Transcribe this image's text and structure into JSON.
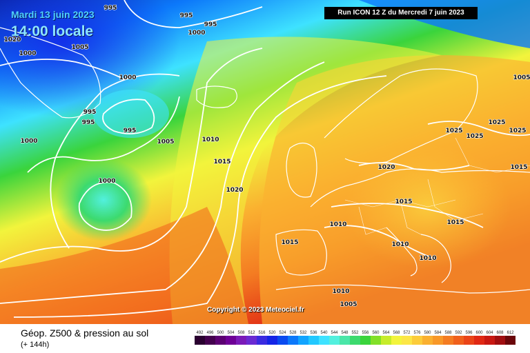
{
  "header": {
    "date": "Mardi 13 juin 2023",
    "time": "14:00 locale",
    "run": "Run ICON 12 Z du Mercredi 7 juin 2023"
  },
  "copyright": "Copyright © 2023 Meteociel.fr",
  "footer": {
    "title": "Géop. Z500 & pression au sol",
    "subtitle": "(+ 144h)"
  },
  "scale": [
    {
      "label": "492",
      "color": "#2a0030"
    },
    {
      "label": "496",
      "color": "#44004e"
    },
    {
      "label": "500",
      "color": "#5c0072"
    },
    {
      "label": "504",
      "color": "#6e0096"
    },
    {
      "label": "508",
      "color": "#7a1ab8"
    },
    {
      "label": "512",
      "color": "#6a2ad2"
    },
    {
      "label": "516",
      "color": "#3a2ae0"
    },
    {
      "label": "520",
      "color": "#1424e6"
    },
    {
      "label": "524",
      "color": "#0a4af0"
    },
    {
      "label": "528",
      "color": "#0c78fa"
    },
    {
      "label": "532",
      "color": "#12a4ff"
    },
    {
      "label": "536",
      "color": "#22c8ff"
    },
    {
      "label": "540",
      "color": "#3ee2ff"
    },
    {
      "label": "544",
      "color": "#52f0de"
    },
    {
      "label": "548",
      "color": "#4ae6a8"
    },
    {
      "label": "552",
      "color": "#3cda6e"
    },
    {
      "label": "556",
      "color": "#3ad43c"
    },
    {
      "label": "560",
      "color": "#82e028"
    },
    {
      "label": "564",
      "color": "#c6ec2a"
    },
    {
      "label": "568",
      "color": "#f2f43c"
    },
    {
      "label": "572",
      "color": "#fce646"
    },
    {
      "label": "576",
      "color": "#fccc3a"
    },
    {
      "label": "580",
      "color": "#fab030"
    },
    {
      "label": "584",
      "color": "#f89828"
    },
    {
      "label": "588",
      "color": "#f47c22"
    },
    {
      "label": "592",
      "color": "#f0601c"
    },
    {
      "label": "596",
      "color": "#ea4418"
    },
    {
      "label": "600",
      "color": "#e02814"
    },
    {
      "label": "604",
      "color": "#c81812"
    },
    {
      "label": "608",
      "color": "#a00e10"
    },
    {
      "label": "612",
      "color": "#6a060a"
    }
  ],
  "isobar_labels": [
    {
      "text": "995"
    },
    {
      "text": "995"
    },
    {
      "text": "995"
    },
    {
      "text": "1000"
    },
    {
      "text": "1005"
    },
    {
      "text": "1000"
    },
    {
      "text": "1000"
    },
    {
      "text": "995"
    },
    {
      "text": "995"
    },
    {
      "text": "995"
    },
    {
      "text": "1005"
    },
    {
      "text": "1000"
    },
    {
      "text": "1000"
    },
    {
      "text": "1010"
    },
    {
      "text": "1015"
    },
    {
      "text": "1020"
    },
    {
      "text": "1020"
    },
    {
      "text": "1025"
    },
    {
      "text": "1025"
    },
    {
      "text": "1025"
    },
    {
      "text": "1025"
    },
    {
      "text": "1020"
    },
    {
      "text": "1015"
    },
    {
      "text": "1015"
    },
    {
      "text": "1010"
    },
    {
      "text": "1015"
    },
    {
      "text": "1010"
    },
    {
      "text": "1010"
    },
    {
      "text": "1010"
    },
    {
      "text": "1005"
    },
    {
      "text": "1005"
    },
    {
      "text": "1015"
    }
  ],
  "colors": {
    "low": "#0a2aa8",
    "mid": "#3ad43c",
    "high": "#f47c22",
    "isobar": "#ffffff",
    "coastline": "#ffffff"
  }
}
